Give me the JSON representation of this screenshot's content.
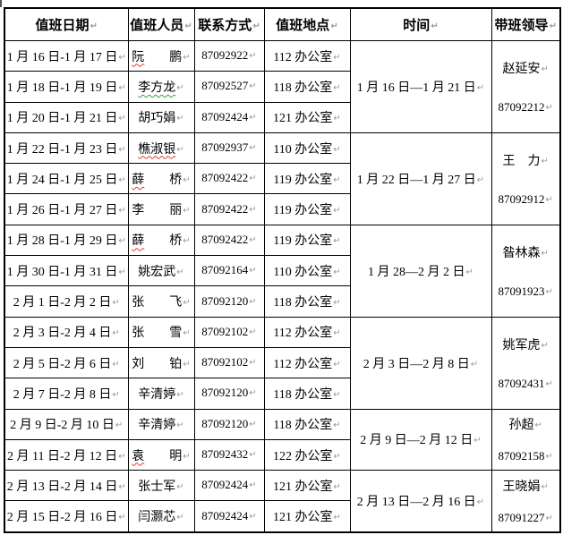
{
  "icons": {
    "paragraph_mark": "↵"
  },
  "colors": {
    "border": "#000000",
    "text": "#000000",
    "paragraph_mark": "#999999",
    "spellcheck_red": "#e23a2e",
    "spellcheck_green": "#2f9e44"
  },
  "header": {
    "columns": [
      "值班日期",
      "值班人员",
      "联系方式",
      "值班地点",
      "时间",
      "带班领导"
    ]
  },
  "rows": [
    {
      "date": "1 月 16 日-1 月 17 日",
      "name_marked": "阮",
      "name_rest": "　　鹏",
      "squiggle": "red",
      "phone": "87092922",
      "location": "112 办公室"
    },
    {
      "date": "1 月 18 日-1 月 19 日",
      "name_marked": "李方龙",
      "name_rest": "",
      "squiggle": "green",
      "phone": "87092527",
      "location": "118 办公室"
    },
    {
      "date": "1 月 20 日-1 月 21 日",
      "name_marked": "",
      "name_rest": "胡巧娟",
      "squiggle": "none",
      "phone": "87092424",
      "location": "121 办公室"
    },
    {
      "date": "1 月 22 日-1 月 23 日",
      "name_marked": "樵淑银",
      "name_rest": "",
      "squiggle": "red",
      "phone": "87092937",
      "location": "110 办公室"
    },
    {
      "date": "1 月 24 日-1 月 25 日",
      "name_marked": "薛",
      "name_rest": "　　桥",
      "squiggle": "red",
      "phone": "87092422",
      "location": "119 办公室"
    },
    {
      "date": "1 月 26 日-1 月 27 日",
      "name_marked": "",
      "name_rest": "李　　丽",
      "squiggle": "none",
      "phone": "87092422",
      "location": "119 办公室"
    },
    {
      "date": "1 月 28 日-1 月 29 日",
      "name_marked": "薛",
      "name_rest": "　　桥",
      "squiggle": "red",
      "phone": "87092422",
      "location": "119 办公室"
    },
    {
      "date": "1 月 30 日-1 月 31 日",
      "name_marked": "",
      "name_rest": "姚宏武",
      "squiggle": "none",
      "phone": "87092164",
      "location": "110 办公室"
    },
    {
      "date": "2 月 1 日-2 月 2 日",
      "name_marked": "",
      "name_rest": "张　　飞",
      "squiggle": "none",
      "phone": "87092120",
      "location": "118 办公室"
    },
    {
      "date": "2 月 3 日-2 月 4 日",
      "name_marked": "",
      "name_rest": "张　　雪",
      "squiggle": "none",
      "phone": "87092102",
      "location": "112 办公室"
    },
    {
      "date": "2 月 5 日-2 月 6 日",
      "name_marked": "",
      "name_rest": "刘　　铂",
      "squiggle": "none",
      "phone": "87092102",
      "location": "112 办公室"
    },
    {
      "date": "2 月 7 日-2 月 8 日",
      "name_marked": "",
      "name_rest": "辛清婷",
      "squiggle": "none",
      "phone": "87092120",
      "location": "118 办公室"
    },
    {
      "date": "2 月 9 日-2 月 10 日",
      "name_marked": "",
      "name_rest": "辛清婷",
      "squiggle": "none",
      "phone": "87092120",
      "location": "118 办公室"
    },
    {
      "date": "2 月 11 日-2 月 12 日",
      "name_marked": "袁",
      "name_rest": "　　明",
      "squiggle": "red",
      "phone": "87092432",
      "location": "122 办公室"
    },
    {
      "date": "2 月 13 日-2 月 14 日",
      "name_marked": "",
      "name_rest": "张士军",
      "squiggle": "none",
      "phone": "87092424",
      "location": "121 办公室"
    },
    {
      "date": "2 月 15 日-2 月 16 日",
      "name_marked": "",
      "name_rest": "闫灏芯",
      "squiggle": "none",
      "phone": "87092424",
      "location": "121 办公室"
    }
  ],
  "groups": [
    {
      "time": "1 月 16 日—1 月 21 日",
      "leader": "赵延安",
      "leader_phone": "87092212",
      "rows": 3
    },
    {
      "time": "1 月 22 日—1 月 27 日",
      "leader": "王　力",
      "leader_phone": "87092912",
      "rows": 3
    },
    {
      "time": "1 月 28—2 月 2 日",
      "leader": "昝林森",
      "leader_phone": "87091923",
      "rows": 3
    },
    {
      "time": "2 月 3 日—2 月 8 日",
      "leader": "姚军虎",
      "leader_phone": "87092431",
      "rows": 3
    },
    {
      "time": "2 月 9 日—2 月 12 日",
      "leader": "孙超",
      "leader_phone": "87092158",
      "rows": 2
    },
    {
      "time": "2 月 13 日—2 月 16 日",
      "leader": "王晓娟",
      "leader_phone": "87091227",
      "rows": 2
    }
  ]
}
